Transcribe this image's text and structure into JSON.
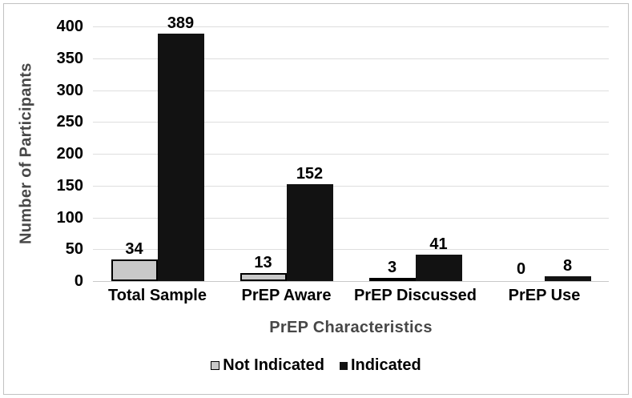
{
  "figure": {
    "frame_border_color": "#c2c2c2",
    "background": "#ffffff"
  },
  "chart_data": {
    "type": "bar",
    "title": "",
    "xlabel": "PrEP Characteristics",
    "ylabel": "Number of Participants",
    "categories": [
      "Total Sample",
      "PrEP Aware",
      "PrEP Discussed",
      "PrEP Use"
    ],
    "series": [
      {
        "name": "Not Indicated",
        "values": [
          34,
          13,
          3,
          0
        ],
        "fill": "#c9c9c9",
        "border": "#000000"
      },
      {
        "name": "Indicated",
        "values": [
          389,
          152,
          41,
          8
        ],
        "fill": "#121212",
        "border": "#121212"
      }
    ],
    "data_labels": [
      [
        "34",
        "13",
        "3",
        "0"
      ],
      [
        "389",
        "152",
        "41",
        "8"
      ]
    ],
    "ylim": [
      0,
      400
    ],
    "ytick_step": 50,
    "ytick_labels": [
      "0",
      "50",
      "100",
      "150",
      "200",
      "250",
      "300",
      "350",
      "400"
    ],
    "grid": true,
    "gridline_color": "#dedede",
    "axis_line_color": "#c8c8c8",
    "axis_title_color": "#474747",
    "text_color": "#000000",
    "legend_position": "bottom"
  }
}
